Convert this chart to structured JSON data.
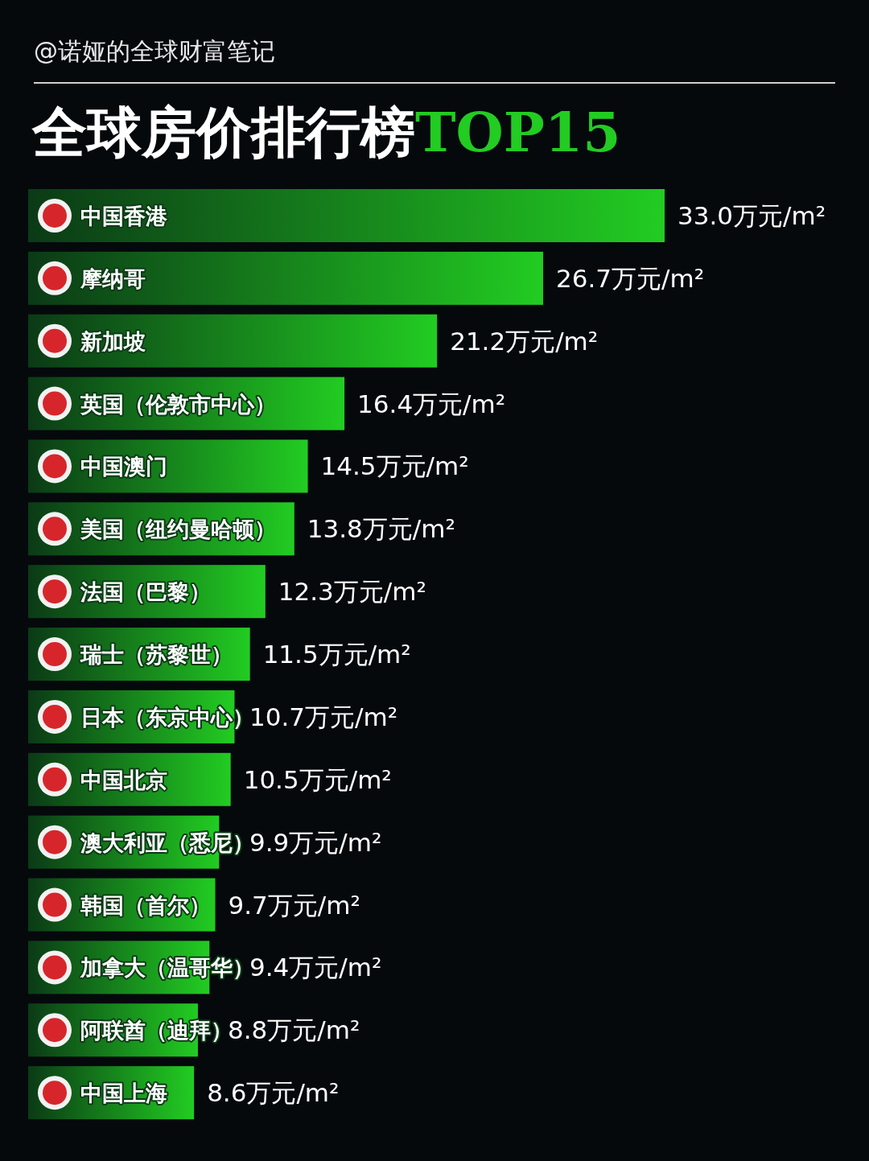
{
  "chart_data": {
    "type": "bar",
    "orientation": "horizontal",
    "title": "全球房价排行榜TOP15",
    "annotations": [
      "@诺娅的全球财富笔记"
    ],
    "categories": [
      "中国香港",
      "摩纳哥",
      "新加坡",
      "英国（伦敦市中心）",
      "中国澳门",
      "美国（纽约曼哈顿）",
      "法国（巴黎）",
      "瑞士（苏黎世）",
      "日本（东京中心）",
      "中国北京",
      "澳大利亚（悉尼）",
      "韩国（首尔）",
      "加拿大（温哥华）",
      "阿联酋（迪拜）",
      "中国上海"
    ],
    "values": [
      33.0,
      26.7,
      21.2,
      16.4,
      14.5,
      13.8,
      12.3,
      11.5,
      10.7,
      10.5,
      9.9,
      9.7,
      9.4,
      8.8,
      8.6
    ],
    "value_labels": [
      "33.0万元/m²",
      "26.7万元/m²",
      "21.2万元/m²",
      "16.4万元/m²",
      "14.5万元/m²",
      "13.8万元/m²",
      "12.3万元/m²",
      "11.5万元/m²",
      "10.7万元/m²",
      "10.5万元/m²",
      "9.9万元/m²",
      "9.7万元/m²",
      "9.4万元/m²",
      "8.8万元/m²",
      "8.6万元/m²"
    ],
    "color": "#22cc22"
  }
}
